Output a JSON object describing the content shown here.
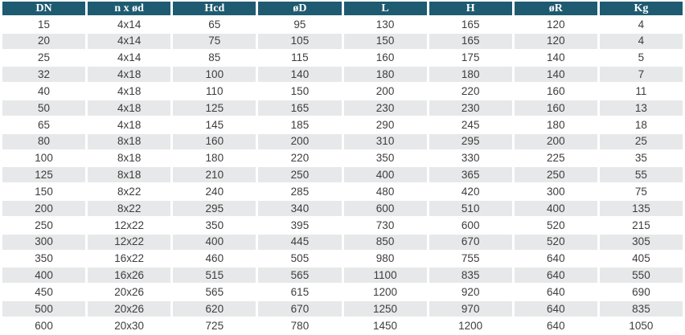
{
  "table": {
    "columns": [
      "DN",
      "n x ød",
      "Hcd",
      "øD",
      "L",
      "H",
      "øR",
      "Kg"
    ],
    "rows": [
      [
        "15",
        "4x14",
        "65",
        "95",
        "130",
        "165",
        "120",
        "4"
      ],
      [
        "20",
        "4x14",
        "75",
        "105",
        "150",
        "165",
        "120",
        "4"
      ],
      [
        "25",
        "4x14",
        "85",
        "115",
        "160",
        "175",
        "140",
        "5"
      ],
      [
        "32",
        "4x18",
        "100",
        "140",
        "180",
        "180",
        "140",
        "7"
      ],
      [
        "40",
        "4x18",
        "110",
        "150",
        "200",
        "220",
        "160",
        "11"
      ],
      [
        "50",
        "4x18",
        "125",
        "165",
        "230",
        "230",
        "160",
        "13"
      ],
      [
        "65",
        "4x18",
        "145",
        "185",
        "290",
        "245",
        "180",
        "18"
      ],
      [
        "80",
        "8x18",
        "160",
        "200",
        "310",
        "295",
        "200",
        "25"
      ],
      [
        "100",
        "8x18",
        "180",
        "220",
        "350",
        "330",
        "225",
        "35"
      ],
      [
        "125",
        "8x18",
        "210",
        "250",
        "400",
        "365",
        "250",
        "55"
      ],
      [
        "150",
        "8x22",
        "240",
        "285",
        "480",
        "420",
        "300",
        "75"
      ],
      [
        "200",
        "8x22",
        "295",
        "340",
        "600",
        "510",
        "400",
        "135"
      ],
      [
        "250",
        "12x22",
        "350",
        "395",
        "730",
        "600",
        "520",
        "215"
      ],
      [
        "300",
        "12x22",
        "400",
        "445",
        "850",
        "670",
        "520",
        "305"
      ],
      [
        "350",
        "16x22",
        "460",
        "505",
        "980",
        "755",
        "640",
        "405"
      ],
      [
        "400",
        "16x26",
        "515",
        "565",
        "1100",
        "835",
        "640",
        "550"
      ],
      [
        "450",
        "20x26",
        "565",
        "615",
        "1200",
        "920",
        "640",
        "690"
      ],
      [
        "500",
        "20x26",
        "620",
        "670",
        "1250",
        "970",
        "640",
        "835"
      ],
      [
        "600",
        "20x30",
        "725",
        "780",
        "1450",
        "1200",
        "640",
        "1050"
      ]
    ],
    "colors": {
      "header_bg": "#1e5b71",
      "header_text": "#ffffff",
      "stripe": "#e7e8e9",
      "body_text": "#3d3d3d",
      "page_bg": "#ffffff"
    }
  }
}
